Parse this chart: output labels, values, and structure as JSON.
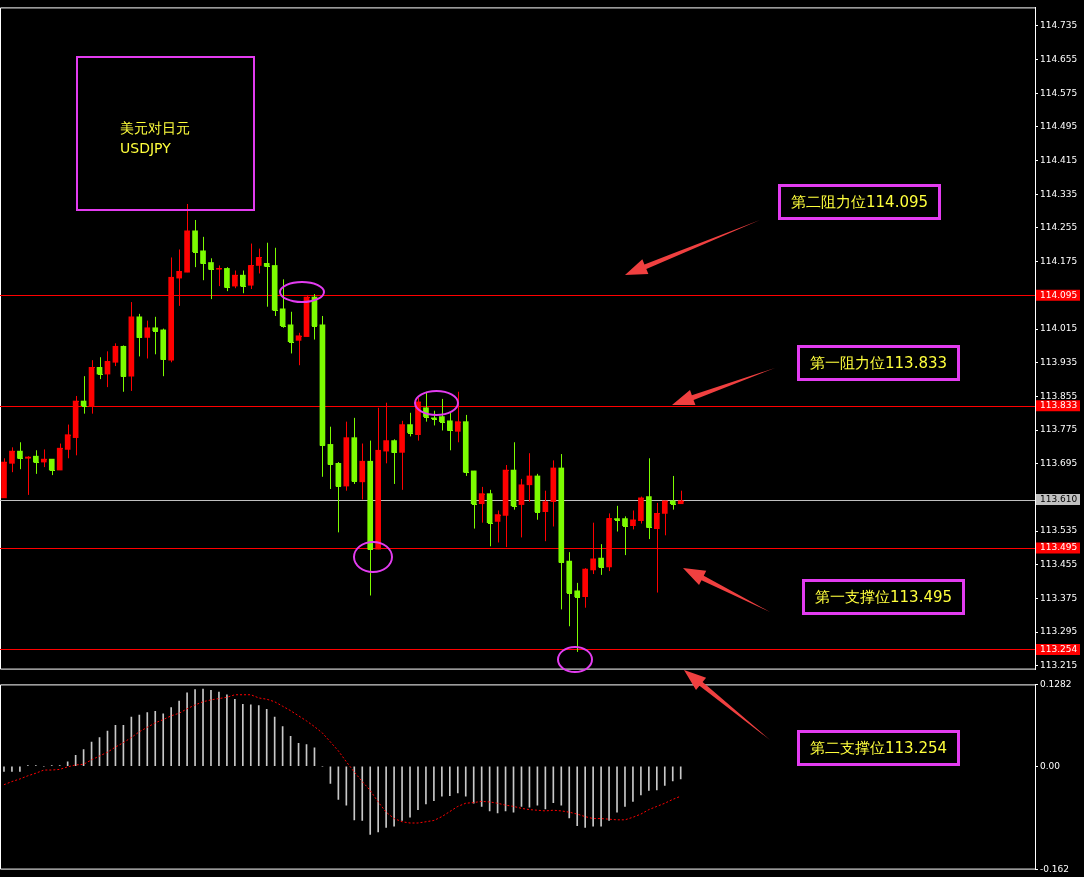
{
  "chart_data": [
    {
      "type": "candlestick",
      "title": "美元对日元",
      "subtitle": "USDJPY",
      "categories": [
        null,
        null,
        null,
        null,
        null,
        null,
        null,
        null,
        null,
        null,
        null,
        null,
        null,
        null,
        null,
        null,
        null,
        null,
        null,
        null,
        null,
        null,
        null,
        null,
        null,
        null,
        null,
        null,
        null,
        null,
        null,
        null,
        null,
        null,
        null,
        null,
        null,
        null,
        null,
        null,
        null,
        null,
        null,
        null,
        null,
        null,
        null,
        null,
        null,
        null,
        null,
        null,
        null,
        null,
        null,
        null,
        null,
        null,
        null,
        null,
        null,
        null,
        null,
        null,
        null,
        null,
        null,
        null,
        null,
        null,
        null,
        null,
        null,
        null,
        null,
        null,
        null,
        null,
        null,
        null,
        null,
        null,
        null,
        null,
        null,
        null,
        null,
        null,
        null,
        null,
        null,
        null,
        null,
        null,
        null,
        null,
        null,
        null,
        null,
        null,
        null,
        null,
        null,
        null,
        null,
        null,
        null,
        null,
        null,
        null,
        null,
        null,
        null,
        null,
        null,
        null,
        null,
        null,
        null,
        null,
        null,
        null,
        null,
        null,
        null,
        null,
        null,
        null,
        null,
        null
      ],
      "ohlc": [
        [
          113.614,
          113.708,
          113.614,
          113.699
        ],
        [
          113.696,
          113.734,
          113.675,
          113.725
        ],
        [
          113.725,
          113.746,
          113.682,
          113.708
        ],
        [
          113.708,
          113.713,
          113.621,
          113.711
        ],
        [
          113.713,
          113.727,
          113.671,
          113.699
        ],
        [
          113.699,
          113.729,
          113.687,
          113.706
        ],
        [
          113.706,
          113.706,
          113.668,
          113.68
        ],
        [
          113.68,
          113.743,
          113.68,
          113.732
        ],
        [
          113.729,
          113.788,
          113.708,
          113.764
        ],
        [
          113.757,
          113.856,
          113.715,
          113.844
        ],
        [
          113.844,
          113.903,
          113.814,
          113.833
        ],
        [
          113.833,
          113.941,
          113.814,
          113.924
        ],
        [
          113.924,
          113.948,
          113.896,
          113.908
        ],
        [
          113.908,
          113.962,
          113.877,
          113.938
        ],
        [
          113.936,
          113.981,
          113.927,
          113.974
        ],
        [
          113.974,
          113.976,
          113.866,
          113.903
        ],
        [
          113.903,
          114.079,
          113.868,
          114.044
        ],
        [
          114.044,
          114.051,
          113.95,
          113.995
        ],
        [
          113.995,
          114.035,
          113.945,
          114.018
        ],
        [
          114.018,
          114.044,
          113.955,
          114.011
        ],
        [
          114.013,
          114.016,
          113.903,
          113.943
        ],
        [
          113.941,
          114.185,
          113.936,
          114.138
        ],
        [
          114.136,
          114.204,
          114.07,
          114.152
        ],
        [
          114.15,
          114.312,
          114.15,
          114.248
        ],
        [
          114.248,
          114.274,
          114.162,
          114.199
        ],
        [
          114.201,
          114.234,
          114.131,
          114.171
        ],
        [
          114.173,
          114.183,
          114.086,
          114.157
        ],
        [
          114.157,
          114.166,
          114.117,
          114.159
        ],
        [
          114.159,
          114.162,
          114.105,
          114.114
        ],
        [
          114.117,
          114.154,
          114.112,
          114.143
        ],
        [
          114.143,
          114.154,
          114.1,
          114.117
        ],
        [
          114.119,
          114.218,
          114.11,
          114.166
        ],
        [
          114.166,
          114.206,
          114.147,
          114.185
        ],
        [
          114.171,
          114.22,
          114.068,
          114.164
        ],
        [
          114.166,
          114.208,
          114.046,
          114.06
        ],
        [
          114.063,
          114.133,
          114.018,
          114.023
        ],
        [
          114.025,
          114.056,
          113.957,
          113.985
        ],
        [
          113.988,
          114.006,
          113.929,
          113.999
        ],
        [
          113.997,
          114.096,
          113.997,
          114.091
        ],
        [
          114.091,
          114.098,
          113.99,
          114.023
        ],
        [
          114.025,
          114.046,
          113.664,
          113.739
        ],
        [
          113.741,
          113.783,
          113.635,
          113.694
        ],
        [
          113.696,
          113.699,
          113.532,
          113.642
        ],
        [
          113.642,
          113.795,
          113.631,
          113.757
        ],
        [
          113.757,
          113.804,
          113.647,
          113.654
        ],
        [
          113.652,
          113.743,
          113.61,
          113.701
        ],
        [
          113.701,
          113.75,
          113.382,
          113.492
        ],
        [
          113.492,
          113.828,
          113.492,
          113.727
        ],
        [
          113.725,
          113.84,
          113.696,
          113.75
        ],
        [
          113.75,
          113.753,
          113.647,
          113.722
        ],
        [
          113.722,
          113.797,
          113.633,
          113.788
        ],
        [
          113.788,
          113.816,
          113.76,
          113.769
        ],
        [
          113.764,
          113.851,
          113.75,
          113.842
        ],
        [
          113.828,
          113.866,
          113.795,
          113.807
        ],
        [
          113.804,
          113.821,
          113.786,
          113.802
        ],
        [
          113.807,
          113.849,
          113.774,
          113.795
        ],
        [
          113.797,
          113.816,
          113.727,
          113.774
        ],
        [
          113.772,
          113.866,
          113.746,
          113.795
        ],
        [
          113.795,
          113.811,
          113.666,
          113.675
        ],
        [
          113.678,
          113.678,
          113.541,
          113.6
        ],
        [
          113.6,
          113.64,
          113.555,
          113.624
        ],
        [
          113.624,
          113.633,
          113.499,
          113.555
        ],
        [
          113.558,
          113.584,
          113.508,
          113.574
        ],
        [
          113.572,
          113.692,
          113.497,
          113.68
        ],
        [
          113.68,
          113.746,
          113.586,
          113.595
        ],
        [
          113.598,
          113.659,
          113.52,
          113.645
        ],
        [
          113.645,
          113.72,
          113.605,
          113.666
        ],
        [
          113.666,
          113.671,
          113.562,
          113.581
        ],
        [
          113.581,
          113.631,
          113.511,
          113.605
        ],
        [
          113.605,
          113.703,
          113.546,
          113.685
        ],
        [
          113.685,
          113.718,
          113.349,
          113.461
        ],
        [
          113.464,
          113.485,
          113.309,
          113.389
        ],
        [
          113.393,
          113.412,
          113.248,
          113.379
        ],
        [
          113.379,
          113.447,
          113.353,
          113.445
        ],
        [
          113.443,
          113.555,
          113.433,
          113.469
        ],
        [
          113.471,
          113.504,
          113.431,
          113.45
        ],
        [
          113.45,
          113.577,
          113.44,
          113.565
        ],
        [
          113.565,
          113.595,
          113.534,
          113.562
        ],
        [
          113.565,
          113.57,
          113.478,
          113.548
        ],
        [
          113.548,
          113.584,
          113.539,
          113.562
        ],
        [
          113.56,
          113.617,
          113.553,
          113.614
        ],
        [
          113.617,
          113.708,
          113.516,
          113.544
        ],
        [
          113.541,
          113.602,
          113.389,
          113.577
        ],
        [
          113.577,
          113.607,
          113.525,
          113.607
        ],
        [
          113.607,
          113.666,
          113.586,
          113.6
        ],
        [
          113.6,
          113.631,
          113.6,
          113.607
        ],
        null,
        null,
        null,
        null,
        null,
        null,
        null,
        null,
        null,
        null,
        null,
        null,
        null,
        null,
        null,
        null,
        null,
        null,
        null,
        null,
        null,
        null,
        null,
        null,
        null,
        null,
        null,
        null,
        null,
        null,
        null,
        null,
        null,
        null,
        null,
        null,
        null,
        null,
        null,
        null,
        null,
        null,
        null,
        null
      ],
      "colors": [
        "#ff0000",
        "#ff0000",
        "#7cfc00",
        "#ff0000",
        "#7cfc00",
        "#ff0000",
        "#7cfc00",
        "#ff0000",
        "#ff0000",
        "#ff0000",
        "#7cfc00",
        "#ff0000",
        "#7cfc00",
        "#ff0000",
        "#ff0000",
        "#7cfc00",
        "#ff0000",
        "#7cfc00",
        "#ff0000",
        "#7cfc00",
        "#7cfc00",
        "#ff0000",
        "#ff0000",
        "#ff0000",
        "#7cfc00",
        "#7cfc00",
        "#7cfc00",
        "#ff0000",
        "#7cfc00",
        "#ff0000",
        "#7cfc00",
        "#ff0000",
        "#ff0000",
        "#7cfc00",
        "#7cfc00",
        "#7cfc00",
        "#7cfc00",
        "#ff0000",
        "#ff0000",
        "#7cfc00",
        "#7cfc00",
        "#7cfc00",
        "#7cfc00",
        "#ff0000",
        "#7cfc00",
        "#ff0000",
        "#7cfc00",
        "#ff0000",
        "#ff0000",
        "#7cfc00",
        "#ff0000",
        "#7cfc00",
        "#ff0000",
        "#7cfc00",
        "#7cfc00",
        "#7cfc00",
        "#7cfc00",
        "#ff0000",
        "#7cfc00",
        "#7cfc00",
        "#ff0000",
        "#7cfc00",
        "#ff0000",
        "#ff0000",
        "#7cfc00",
        "#ff0000",
        "#ff0000",
        "#7cfc00",
        "#ff0000",
        "#ff0000",
        "#7cfc00",
        "#7cfc00",
        "#7cfc00",
        "#ff0000",
        "#ff0000",
        "#7cfc00",
        "#ff0000",
        "#7cfc00",
        "#7cfc00",
        "#ff0000",
        "#ff0000",
        "#7cfc00",
        "#ff0000",
        "#ff0000",
        "#7cfc00",
        "#ff0000",
        null,
        null,
        null,
        null,
        null,
        null,
        null,
        null,
        null,
        null,
        null,
        null,
        null,
        null,
        null,
        null,
        null,
        null,
        null,
        null,
        null,
        null,
        null,
        null,
        null,
        null,
        null,
        null,
        null,
        null,
        null,
        null,
        null,
        null,
        null,
        null,
        null,
        null,
        null,
        null,
        null,
        null,
        null,
        null
      ],
      "ylim": [
        113.206,
        114.779
      ],
      "yticks": [
        114.735,
        114.655,
        114.575,
        114.495,
        114.415,
        114.335,
        114.255,
        114.175,
        114.095,
        114.015,
        113.935,
        113.855,
        113.775,
        113.695,
        113.535,
        113.455,
        113.375,
        113.295,
        113.215
      ],
      "ref_lines": [
        {
          "axis": "y",
          "value": 114.095,
          "label": "114.095",
          "color": "#ff0000"
        },
        {
          "axis": "y",
          "value": 113.833,
          "label": "113.833",
          "color": "#ff0000"
        },
        {
          "axis": "y",
          "value": 113.61,
          "label": "113.610",
          "color": "#c0c0c0"
        },
        {
          "axis": "y",
          "value": 113.495,
          "label": "113.495",
          "color": "#ff0000"
        },
        {
          "axis": "y",
          "value": 113.254,
          "label": "113.254",
          "color": "#ff0000"
        }
      ],
      "annotations": [
        "第二阻力位114.095",
        "第一阻力位113.833",
        "第一支撑位113.495",
        "第二支撑位113.254"
      ]
    },
    {
      "type": "bar",
      "categories": [
        null,
        null,
        null,
        null,
        null,
        null,
        null,
        null,
        null,
        null,
        null,
        null,
        null,
        null,
        null,
        null,
        null,
        null,
        null,
        null,
        null,
        null,
        null,
        null,
        null,
        null,
        null,
        null,
        null,
        null,
        null,
        null,
        null,
        null,
        null,
        null,
        null,
        null,
        null,
        null,
        null,
        null,
        null,
        null,
        null,
        null,
        null,
        null,
        null,
        null,
        null,
        null,
        null,
        null,
        null,
        null,
        null,
        null,
        null,
        null,
        null,
        null,
        null,
        null,
        null,
        null,
        null,
        null,
        null,
        null,
        null,
        null,
        null,
        null,
        null,
        null,
        null,
        null,
        null,
        null,
        null,
        null,
        null,
        null,
        null,
        null,
        null,
        null,
        null,
        null,
        null,
        null,
        null,
        null,
        null,
        null,
        null,
        null,
        null,
        null,
        null,
        null,
        null,
        null,
        null,
        null,
        null,
        null,
        null,
        null,
        null,
        null,
        null,
        null,
        null,
        null,
        null,
        null,
        null,
        null,
        null,
        null,
        null,
        null,
        null,
        null,
        null,
        null,
        null,
        null
      ],
      "series": [
        {
          "type": "bar",
          "color": "#c8c8c8",
          "values": [
            -0.008,
            -0.008,
            -0.008,
            0.001,
            0.001,
            0,
            0.001,
            0.001,
            0.007,
            0.017,
            0.026,
            0.038,
            0.045,
            0.055,
            0.064,
            0.064,
            0.077,
            0.08,
            0.084,
            0.086,
            0.082,
            0.092,
            0.102,
            0.115,
            0.12,
            0.121,
            0.119,
            0.116,
            0.112,
            0.105,
            0.097,
            0.096,
            0.095,
            0.089,
            0.077,
            0.062,
            0.047,
            0.036,
            0.034,
            0.029,
            0,
            -0.027,
            -0.052,
            -0.061,
            -0.084,
            -0.085,
            -0.107,
            -0.103,
            -0.096,
            -0.094,
            -0.085,
            -0.08,
            -0.068,
            -0.059,
            -0.054,
            -0.047,
            -0.046,
            -0.042,
            -0.047,
            -0.058,
            -0.063,
            -0.07,
            -0.073,
            -0.07,
            -0.072,
            -0.063,
            -0.064,
            -0.061,
            -0.067,
            -0.057,
            -0.061,
            -0.081,
            -0.093,
            -0.096,
            -0.094,
            -0.094,
            -0.085,
            -0.072,
            -0.063,
            -0.055,
            -0.045,
            -0.038,
            -0.037,
            -0.03,
            -0.023,
            -0.02,
            null,
            null,
            null,
            null,
            null,
            null,
            null,
            null,
            null,
            null,
            null,
            null,
            null,
            null,
            null,
            null,
            null,
            null,
            null,
            null,
            null,
            null,
            null,
            null,
            null,
            null,
            null,
            null,
            null,
            null,
            null,
            null,
            null,
            null,
            null,
            null,
            null,
            null,
            null,
            null,
            null,
            null,
            null,
            null
          ]
        },
        {
          "type": "line",
          "color": "#ff0000",
          "line_style": "dotted",
          "values": [
            -0.029,
            -0.024,
            -0.02,
            -0.015,
            -0.011,
            -0.006,
            -0.006,
            -0.005,
            -0.001,
            0.002,
            0.003,
            0.01,
            0.016,
            0.022,
            0.03,
            0.037,
            0.045,
            0.054,
            0.061,
            0.068,
            0.073,
            0.079,
            0.083,
            0.09,
            0.096,
            0.101,
            0.104,
            0.106,
            0.108,
            0.112,
            0.112,
            0.112,
            0.107,
            0.105,
            0.101,
            0.094,
            0.087,
            0.079,
            0.071,
            0.062,
            0.052,
            0.038,
            0.024,
            0.007,
            -0.009,
            -0.024,
            -0.038,
            -0.056,
            -0.072,
            -0.082,
            -0.087,
            -0.089,
            -0.089,
            -0.087,
            -0.085,
            -0.079,
            -0.071,
            -0.063,
            -0.058,
            -0.057,
            -0.055,
            -0.056,
            -0.058,
            -0.061,
            -0.063,
            -0.066,
            -0.068,
            -0.069,
            -0.07,
            -0.069,
            -0.07,
            -0.072,
            -0.075,
            -0.079,
            -0.082,
            -0.082,
            -0.083,
            -0.084,
            -0.084,
            -0.08,
            -0.075,
            -0.068,
            -0.063,
            -0.058,
            -0.052,
            -0.047,
            null,
            null,
            null,
            null,
            null,
            null,
            null,
            null,
            null,
            null,
            null,
            null,
            null,
            null,
            null,
            null,
            null,
            null,
            null,
            null,
            null,
            null,
            null,
            null,
            null,
            null,
            null,
            null,
            null,
            null,
            null,
            null,
            null,
            null,
            null,
            null,
            null,
            null,
            null,
            null,
            null,
            null,
            null,
            null
          ]
        }
      ],
      "ylim": [
        -0.162,
        0.1282
      ],
      "yticks": [
        0.1282,
        {
          "value": 0,
          "label": "0.00"
        },
        -0.162
      ]
    }
  ]
}
